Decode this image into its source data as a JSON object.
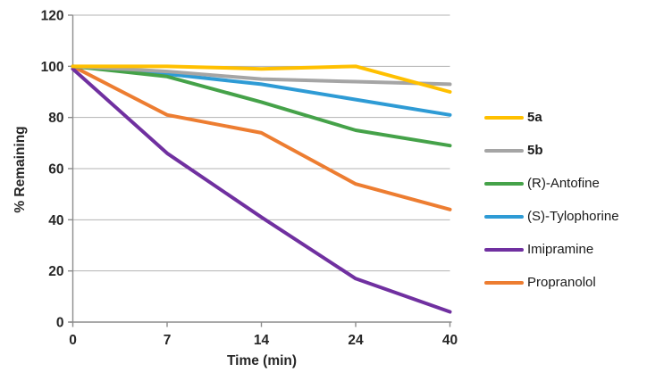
{
  "chart_data": {
    "type": "line",
    "title": "",
    "xlabel": "Time (min)",
    "ylabel": "% Remaining",
    "x_categories": [
      "0",
      "7",
      "14",
      "24",
      "40"
    ],
    "yticks": [
      0,
      20,
      40,
      60,
      80,
      100,
      120
    ],
    "ylim": [
      0,
      120
    ],
    "grid": "horizontal-only",
    "legend_position": "right",
    "series": [
      {
        "name": "5a",
        "color": "#FFC000",
        "bold_label": true,
        "values": [
          100,
          100,
          99,
          100,
          90
        ]
      },
      {
        "name": "5b",
        "color": "#A5A5A5",
        "bold_label": true,
        "values": [
          100,
          98,
          95,
          94,
          93
        ]
      },
      {
        "name": "(R)-Antofine",
        "color": "#45A249",
        "bold_label": false,
        "values": [
          100,
          96,
          86,
          75,
          69
        ]
      },
      {
        "name": "(S)-Tylophorine",
        "color": "#2E9BD5",
        "bold_label": false,
        "values": [
          100,
          97,
          93,
          87,
          81
        ]
      },
      {
        "name": "Imipramine",
        "color": "#7030A0",
        "bold_label": false,
        "values": [
          99,
          66,
          41,
          17,
          4
        ]
      },
      {
        "name": "Propranolol",
        "color": "#ED7D31",
        "bold_label": false,
        "values": [
          100,
          81,
          74,
          54,
          44
        ]
      }
    ]
  },
  "style": {
    "grid_color": "#B3B3B3",
    "axis_color": "#8C8C8C",
    "tick_label_color": "#262626",
    "series_stroke_width": 4
  }
}
